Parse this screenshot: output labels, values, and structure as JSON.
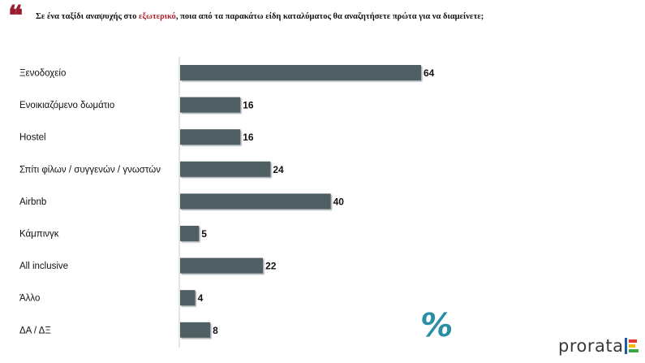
{
  "header": {
    "quote_icon": "quote-mark-icon",
    "question_before": "Σε ένα ταξίδι αναψυχής στο ",
    "question_highlight": "εξωτερικό",
    "question_after": ", ποια από τα παρακάτω είδη καταλύματος θα αναζητήσετε πρώτα για να διαμείνετε;",
    "highlight_color": "#b0202f"
  },
  "chart_data": {
    "type": "bar",
    "orientation": "horizontal",
    "categories": [
      "Ξενοδοχείο",
      "Ενοικιαζόμενο δωμάτιο",
      "Hostel",
      "Σπίτι φίλων / συγγενών / γνωστών",
      "Airbnb",
      "Κάμπινγκ",
      "All inclusive",
      "Άλλο",
      "ΔΑ / ΔΞ"
    ],
    "values": [
      64,
      16,
      16,
      24,
      40,
      5,
      22,
      4,
      8
    ],
    "title": "",
    "xlabel": "",
    "ylabel": "",
    "xlim": [
      0,
      70
    ],
    "grid": false,
    "bar_color": "#4f5e63",
    "data_labels": true
  },
  "unit_mark": "%",
  "logo": {
    "text": "prorata",
    "colors": [
      "#1d5e9e",
      "#e63a2e",
      "#f2b705",
      "#3aa845"
    ]
  }
}
